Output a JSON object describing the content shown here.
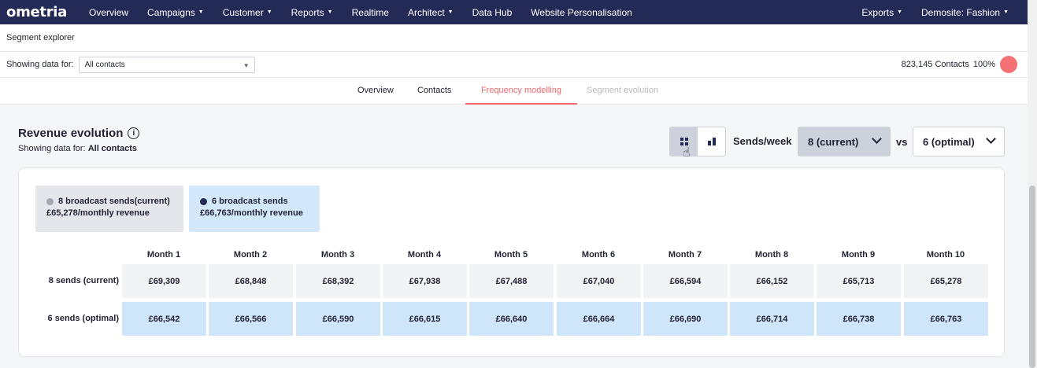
{
  "nav": {
    "logo": "ometria",
    "items": [
      "Overview",
      "Campaigns",
      "Customer",
      "Reports",
      "Realtime",
      "Architect",
      "Data Hub",
      "Website Personalisation"
    ],
    "right": [
      "Exports",
      "Demosite: Fashion"
    ]
  },
  "page": {
    "title": "Segment explorer"
  },
  "filter": {
    "label": "Showing data for:",
    "value": "All contacts",
    "contacts": "823,145 Contacts",
    "percent": "100%"
  },
  "tabs": [
    "Overview",
    "Contacts",
    "Frequency modelling",
    "Segment evolution"
  ],
  "section": {
    "title": "Revenue evolution",
    "subtitle_prefix": "Showing data for:",
    "subtitle_value": "All contacts",
    "sends_label": "Sends/week",
    "current": "8 (current)",
    "vs": "vs",
    "optimal": "6 (optimal)"
  },
  "legend": [
    {
      "name": "8 broadcast sends(current)",
      "revenue": "£65,278/monthly revenue",
      "color": "#a4a7b2"
    },
    {
      "name": "6 broadcast sends",
      "revenue": "£66,763/monthly revenue",
      "color": "#232a56"
    }
  ],
  "table": {
    "months": [
      "Month 1",
      "Month 2",
      "Month 3",
      "Month 4",
      "Month 5",
      "Month 6",
      "Month 7",
      "Month 8",
      "Month 9",
      "Month 10"
    ],
    "rows": [
      {
        "label": "8 sends (current)",
        "values": [
          "£69,309",
          "£68,848",
          "£68,392",
          "£67,938",
          "£67,488",
          "£67,040",
          "£66,594",
          "£66,152",
          "£65,713",
          "£65,278"
        ]
      },
      {
        "label": "6 sends (optimal)",
        "values": [
          "£66,542",
          "£66,566",
          "£66,590",
          "£66,615",
          "£66,640",
          "£66,664",
          "£66,690",
          "£66,714",
          "£66,738",
          "£66,763"
        ]
      }
    ]
  }
}
